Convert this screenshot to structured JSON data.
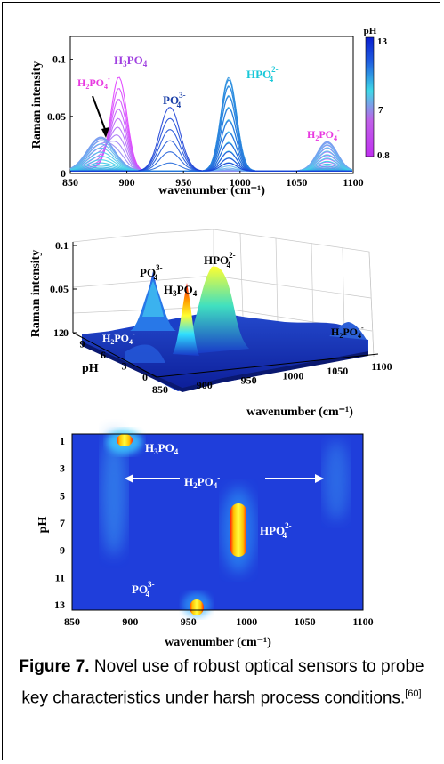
{
  "figure": {
    "caption_label": "Figure 7.",
    "caption_text": " Novel use of robust optical sensors to probe key characteristics under harsh process conditions.",
    "caption_ref": "[60]"
  },
  "colors": {
    "acid": "#e040ff",
    "mid": "#3fd4e8",
    "base": "#1a3fd6",
    "species_purple": "#a040e0",
    "species_magenta": "#e838e0",
    "species_teal": "#18c8d8",
    "species_blue": "#1a3fa8"
  },
  "chart_data": [
    {
      "type": "line",
      "panel": "top",
      "xlabel": "wavenumber (cm⁻¹)",
      "ylabel": "Raman intensity",
      "xlim": [
        850,
        1100
      ],
      "ylim": [
        0,
        0.12
      ],
      "xticks": [
        "850",
        "900",
        "950",
        "1000",
        "1050",
        "1100"
      ],
      "yticks": [
        "0",
        "0.05",
        "0.1"
      ],
      "colorbar": {
        "title": "pH",
        "ticks": [
          "13",
          "7",
          "0.8"
        ],
        "range": [
          0.8,
          13
        ]
      },
      "peaks": [
        {
          "species": "H3PO4",
          "x": 893,
          "max": 0.106
        },
        {
          "species": "PO4 3-",
          "x": 938,
          "max": 0.056
        },
        {
          "species": "HPO4 2-",
          "x": 990,
          "max": 0.082
        },
        {
          "species": "H2PO4-",
          "x": 877,
          "max": 0.03
        },
        {
          "species": "H2PO4-",
          "x": 1077,
          "max": 0.026
        }
      ],
      "annotations": [
        "H3PO4",
        "H2PO4-",
        "PO4 3-",
        "HPO4 2-",
        "H2PO4-"
      ]
    },
    {
      "type": "surface",
      "panel": "middle",
      "xlabel": "wavenumber (cm⁻¹)",
      "ylabel": "pH",
      "zlabel": "Raman intensity",
      "xticks": [
        "850",
        "900",
        "950",
        "1000",
        "1050",
        "1100"
      ],
      "yticks": [
        "0",
        "3",
        "6",
        "9",
        "12"
      ],
      "zticks": [
        "0",
        "0.05",
        "0.1"
      ],
      "annotations": [
        "PO4 3-",
        "H3PO4",
        "HPO4 2-",
        "H2PO4-",
        "H2PO4-"
      ]
    },
    {
      "type": "heatmap",
      "panel": "bottom",
      "xlabel": "wavenumber (cm⁻¹)",
      "ylabel": "pH",
      "xlim": [
        850,
        1100
      ],
      "ylim": [
        1,
        13
      ],
      "xticks": [
        "850",
        "900",
        "950",
        "1000",
        "1050",
        "1100"
      ],
      "yticks": [
        "1",
        "3",
        "5",
        "7",
        "9",
        "11",
        "13"
      ],
      "hotspots": [
        {
          "species": "H3PO4",
          "x": 893,
          "pH": 1
        },
        {
          "species": "HPO4 2-",
          "x": 990,
          "pH": 9.5
        },
        {
          "species": "PO4 3-",
          "x": 938,
          "pH": 13
        }
      ],
      "annotations": [
        "H3PO4",
        "H2PO4-",
        "HPO4 2-",
        "PO4 3-"
      ]
    }
  ]
}
